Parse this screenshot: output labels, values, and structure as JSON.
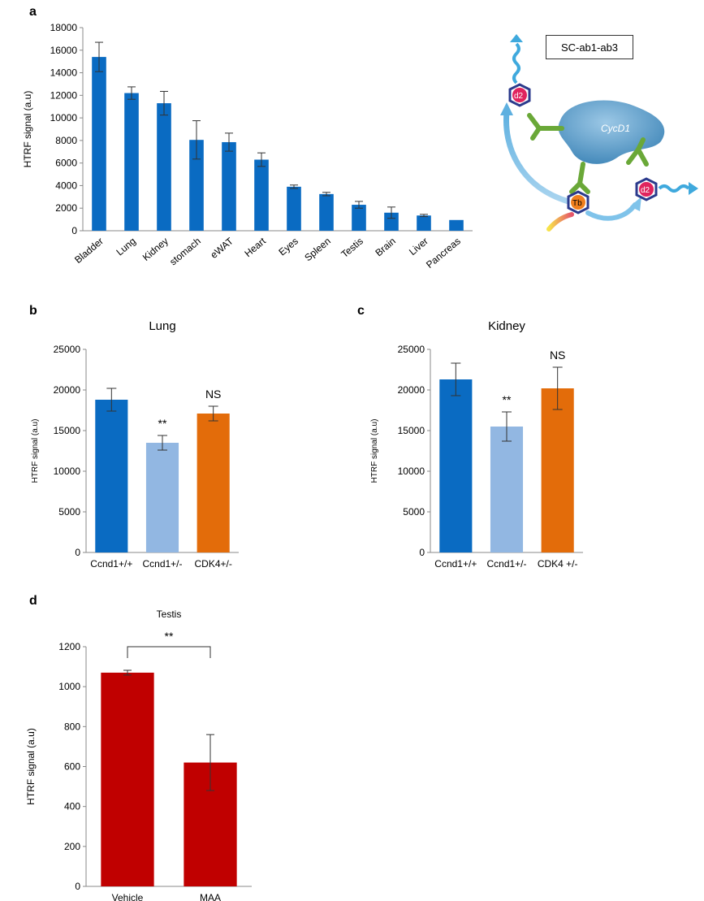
{
  "panels": {
    "a": "a",
    "b": "b",
    "c": "c",
    "d": "d"
  },
  "diagram": {
    "label_box": "SC-ab1-ab3",
    "protein": "CycD1",
    "acceptor_1": "d2",
    "acceptor_2": "d2",
    "donor": "Tb",
    "colors": {
      "protein": "#5b9bc4",
      "antibody": "#6aa838",
      "acceptor": "#e0245e",
      "donor": "#f07f1e",
      "hex_border": "#2b3a8c"
    }
  },
  "chart_data": [
    {
      "id": "a",
      "type": "bar",
      "title": "",
      "ylabel": "HTRF signal (a.u)",
      "xlabel": "",
      "ylim": [
        0,
        18000
      ],
      "yticks": [
        0,
        2000,
        4000,
        6000,
        8000,
        10000,
        12000,
        14000,
        16000,
        18000
      ],
      "categories": [
        "Bladder",
        "Lung",
        "Kidney",
        "stomach",
        "eWAT",
        "Heart",
        "Eyes",
        "Spleen",
        "Testis",
        "Brain",
        "Liver",
        "Pancreas"
      ],
      "values": [
        15400,
        12200,
        11300,
        8050,
        7850,
        6300,
        3900,
        3250,
        2300,
        1600,
        1350,
        950
      ],
      "errors": [
        1300,
        550,
        1050,
        1700,
        800,
        600,
        150,
        150,
        300,
        500,
        100,
        0
      ],
      "colors": [
        "#0a6bc2"
      ]
    },
    {
      "id": "b",
      "type": "bar",
      "title": "Lung",
      "ylabel": "HTRF signal (a.u)",
      "xlabel": "",
      "ylim": [
        0,
        25000
      ],
      "yticks": [
        0,
        5000,
        10000,
        15000,
        20000,
        25000
      ],
      "categories": [
        "Ccnd1+/+",
        "Ccnd1+/-",
        "CDK4+/-"
      ],
      "values": [
        18800,
        13500,
        17100
      ],
      "errors": [
        1400,
        900,
        900
      ],
      "annotations": [
        "",
        "**",
        "NS"
      ],
      "colors": [
        "#0a6bc2",
        "#92b7e2",
        "#e36c0a"
      ]
    },
    {
      "id": "c",
      "type": "bar",
      "title": "Kidney",
      "ylabel": "HTRF signal (a.u)",
      "xlabel": "",
      "ylim": [
        0,
        25000
      ],
      "yticks": [
        0,
        5000,
        10000,
        15000,
        20000,
        25000
      ],
      "categories": [
        "Ccnd1+/+",
        "Ccnd1+/-",
        "CDK4 +/-"
      ],
      "values": [
        21300,
        15500,
        20200
      ],
      "errors": [
        2000,
        1800,
        2600
      ],
      "annotations": [
        "",
        "**",
        "NS"
      ],
      "colors": [
        "#0a6bc2",
        "#92b7e2",
        "#e36c0a"
      ]
    },
    {
      "id": "d",
      "type": "bar",
      "title": "Testis",
      "ylabel": "HTRF signal (a.u)",
      "xlabel": "",
      "ylim": [
        0,
        1200
      ],
      "yticks": [
        0,
        200,
        400,
        600,
        800,
        1000,
        1200
      ],
      "categories": [
        "Vehicle",
        "MAA"
      ],
      "values": [
        1070,
        620
      ],
      "errors": [
        12,
        140
      ],
      "bracket": "**",
      "colors": [
        "#c00000",
        "#c00000"
      ]
    }
  ]
}
